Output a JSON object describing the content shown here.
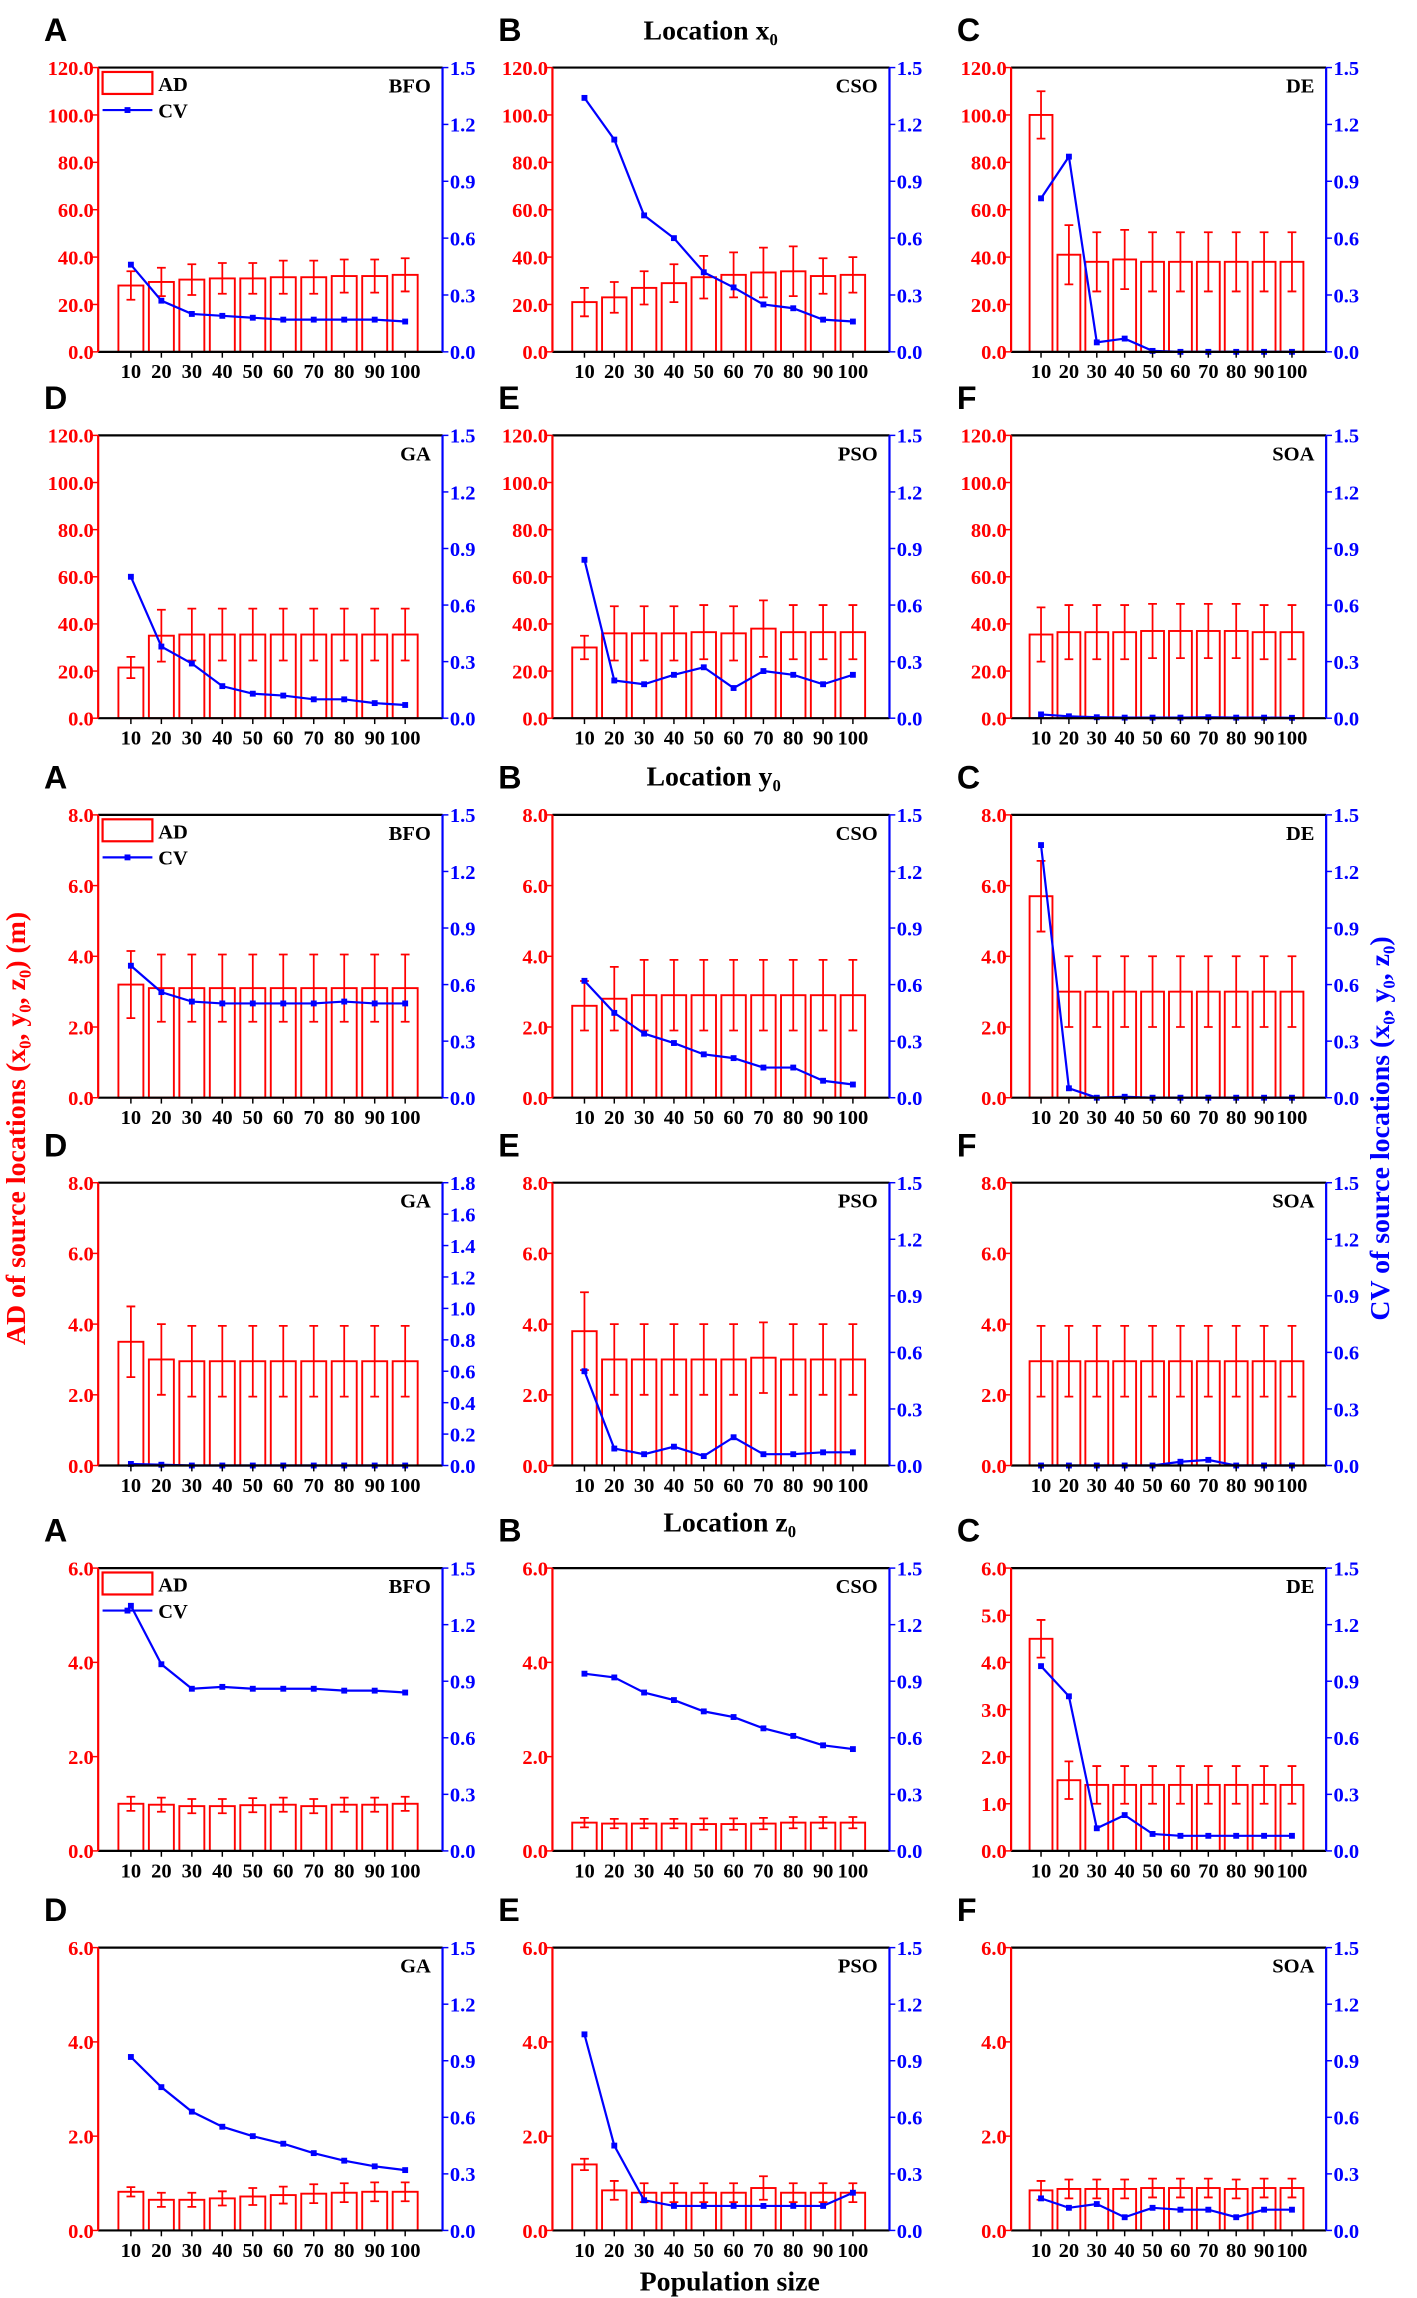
{
  "figure": {
    "x_axis_label": "Population size",
    "left_axis_label": "AD of source locations (x₀, y₀, z₀) (m)",
    "right_axis_label": "CV of source locations (x₀, y₀, z₀)",
    "group_titles": [
      "Location x₀",
      "Location y₀",
      "Location z₀"
    ],
    "legend": {
      "ad": "AD",
      "cv": "CV"
    },
    "colors": {
      "ad": "#ff0000",
      "cv": "#0000ff",
      "frame": "#000000"
    }
  },
  "chart_data": [
    {
      "type": "bar+line",
      "group": 0,
      "letter": "A",
      "algorithm": "BFO",
      "categories": [
        "10",
        "20",
        "30",
        "40",
        "50",
        "60",
        "70",
        "80",
        "90",
        "100"
      ],
      "ylim": [
        0,
        120
      ],
      "yticks": [
        0,
        20,
        40,
        60,
        80,
        100,
        120
      ],
      "y2lim": [
        0,
        1.5
      ],
      "y2ticks": [
        0,
        0.3,
        0.6,
        0.9,
        1.2,
        1.5
      ],
      "ad": [
        28,
        29.5,
        30.5,
        31,
        31,
        31.5,
        31.5,
        32,
        32,
        32.5
      ],
      "ad_err": [
        6,
        6,
        6.5,
        6.5,
        6.5,
        7,
        7,
        7,
        7,
        7
      ],
      "cv": [
        0.46,
        0.27,
        0.2,
        0.19,
        0.18,
        0.17,
        0.17,
        0.17,
        0.17,
        0.16
      ]
    },
    {
      "type": "bar+line",
      "group": 0,
      "letter": "B",
      "algorithm": "CSO",
      "categories": [
        "10",
        "20",
        "30",
        "40",
        "50",
        "60",
        "70",
        "80",
        "90",
        "100"
      ],
      "ylim": [
        0,
        120
      ],
      "yticks": [
        0,
        20,
        40,
        60,
        80,
        100,
        120
      ],
      "y2lim": [
        0,
        1.5
      ],
      "y2ticks": [
        0,
        0.3,
        0.6,
        0.9,
        1.2,
        1.5
      ],
      "ad": [
        21,
        23,
        27,
        29,
        31.5,
        32.5,
        33.5,
        34,
        32,
        32.5
      ],
      "ad_err": [
        6,
        6.5,
        7,
        8,
        9,
        9.5,
        10.5,
        10.5,
        7.5,
        7.5
      ],
      "cv": [
        1.34,
        1.12,
        0.72,
        0.6,
        0.42,
        0.34,
        0.25,
        0.23,
        0.17,
        0.16
      ]
    },
    {
      "type": "bar+line",
      "group": 0,
      "letter": "C",
      "algorithm": "DE",
      "categories": [
        "10",
        "20",
        "30",
        "40",
        "50",
        "60",
        "70",
        "80",
        "90",
        "100"
      ],
      "ylim": [
        0,
        120
      ],
      "yticks": [
        0,
        20,
        40,
        60,
        80,
        100,
        120
      ],
      "y2lim": [
        0,
        1.5
      ],
      "y2ticks": [
        0,
        0.3,
        0.6,
        0.9,
        1.2,
        1.5
      ],
      "ad": [
        100,
        41,
        38,
        39,
        38,
        38,
        38,
        38,
        38,
        38
      ],
      "ad_err": [
        10,
        12.5,
        12.5,
        12.5,
        12.5,
        12.5,
        12.5,
        12.5,
        12.5,
        12.5
      ],
      "cv": [
        0.81,
        1.03,
        0.05,
        0.07,
        0.005,
        0,
        0,
        0,
        0,
        0
      ]
    },
    {
      "type": "bar+line",
      "group": 0,
      "letter": "D",
      "algorithm": "GA",
      "categories": [
        "10",
        "20",
        "30",
        "40",
        "50",
        "60",
        "70",
        "80",
        "90",
        "100"
      ],
      "ylim": [
        0,
        120
      ],
      "yticks": [
        0,
        20,
        40,
        60,
        80,
        100,
        120
      ],
      "y2lim": [
        0,
        1.5
      ],
      "y2ticks": [
        0,
        0.3,
        0.6,
        0.9,
        1.2,
        1.5
      ],
      "ad": [
        21.5,
        35,
        35.5,
        35.5,
        35.5,
        35.5,
        35.5,
        35.5,
        35.5,
        35.5
      ],
      "ad_err": [
        4.5,
        11,
        11,
        11,
        11,
        11,
        11,
        11,
        11,
        11
      ],
      "cv": [
        0.75,
        0.38,
        0.29,
        0.17,
        0.13,
        0.12,
        0.1,
        0.1,
        0.08,
        0.07
      ]
    },
    {
      "type": "bar+line",
      "group": 0,
      "letter": "E",
      "algorithm": "PSO",
      "categories": [
        "10",
        "20",
        "30",
        "40",
        "50",
        "60",
        "70",
        "80",
        "90",
        "100"
      ],
      "ylim": [
        0,
        120
      ],
      "yticks": [
        0,
        20,
        40,
        60,
        80,
        100,
        120
      ],
      "y2lim": [
        0,
        1.5
      ],
      "y2ticks": [
        0,
        0.3,
        0.6,
        0.9,
        1.2,
        1.5
      ],
      "ad": [
        30,
        36,
        36,
        36,
        36.5,
        36,
        38,
        36.5,
        36.5,
        36.5
      ],
      "ad_err": [
        5,
        11.5,
        11.5,
        11.5,
        11.5,
        11.5,
        12,
        11.5,
        11.5,
        11.5
      ],
      "cv": [
        0.84,
        0.2,
        0.18,
        0.23,
        0.27,
        0.16,
        0.25,
        0.23,
        0.18,
        0.23
      ]
    },
    {
      "type": "bar+line",
      "group": 0,
      "letter": "F",
      "algorithm": "SOA",
      "categories": [
        "10",
        "20",
        "30",
        "40",
        "50",
        "60",
        "70",
        "80",
        "90",
        "100"
      ],
      "ylim": [
        0,
        120
      ],
      "yticks": [
        0,
        20,
        40,
        60,
        80,
        100,
        120
      ],
      "y2lim": [
        0,
        1.5
      ],
      "y2ticks": [
        0,
        0.3,
        0.6,
        0.9,
        1.2,
        1.5
      ],
      "ad": [
        35.5,
        36.5,
        36.5,
        36.5,
        37,
        37,
        37,
        37,
        36.5,
        36.5
      ],
      "ad_err": [
        11.5,
        11.5,
        11.5,
        11.5,
        11.5,
        11.5,
        11.5,
        11.5,
        11.5,
        11.5
      ],
      "cv": [
        0.02,
        0.01,
        0.005,
        0.003,
        0.003,
        0.003,
        0.005,
        0.003,
        0.003,
        0.002
      ]
    },
    {
      "type": "bar+line",
      "group": 1,
      "letter": "A",
      "algorithm": "BFO",
      "categories": [
        "10",
        "20",
        "30",
        "40",
        "50",
        "60",
        "70",
        "80",
        "90",
        "100"
      ],
      "ylim": [
        0,
        8
      ],
      "yticks": [
        0,
        2,
        4,
        6,
        8
      ],
      "y2lim": [
        0,
        1.5
      ],
      "y2ticks": [
        0,
        0.3,
        0.6,
        0.9,
        1.2,
        1.5
      ],
      "ad": [
        3.2,
        3.1,
        3.1,
        3.1,
        3.1,
        3.1,
        3.1,
        3.1,
        3.1,
        3.1
      ],
      "ad_err": [
        0.95,
        0.95,
        0.95,
        0.95,
        0.95,
        0.95,
        0.95,
        0.95,
        0.95,
        0.95
      ],
      "cv": [
        0.7,
        0.56,
        0.51,
        0.5,
        0.5,
        0.5,
        0.5,
        0.51,
        0.5,
        0.5
      ]
    },
    {
      "type": "bar+line",
      "group": 1,
      "letter": "B",
      "algorithm": "CSO",
      "categories": [
        "10",
        "20",
        "30",
        "40",
        "50",
        "60",
        "70",
        "80",
        "90",
        "100"
      ],
      "ylim": [
        0,
        8
      ],
      "yticks": [
        0,
        2,
        4,
        6,
        8
      ],
      "y2lim": [
        0,
        1.5
      ],
      "y2ticks": [
        0,
        0.3,
        0.6,
        0.9,
        1.2,
        1.5
      ],
      "ad": [
        2.6,
        2.8,
        2.9,
        2.9,
        2.9,
        2.9,
        2.9,
        2.9,
        2.9,
        2.9
      ],
      "ad_err": [
        0.7,
        0.9,
        1,
        1,
        1,
        1,
        1,
        1,
        1,
        1
      ],
      "cv": [
        0.62,
        0.45,
        0.34,
        0.29,
        0.23,
        0.21,
        0.16,
        0.16,
        0.09,
        0.07
      ]
    },
    {
      "type": "bar+line",
      "group": 1,
      "letter": "C",
      "algorithm": "DE",
      "categories": [
        "10",
        "20",
        "30",
        "40",
        "50",
        "60",
        "70",
        "80",
        "90",
        "100"
      ],
      "ylim": [
        0,
        8
      ],
      "yticks": [
        0,
        2,
        4,
        6,
        8
      ],
      "y2lim": [
        0,
        1.5
      ],
      "y2ticks": [
        0,
        0.3,
        0.6,
        0.9,
        1.2,
        1.5
      ],
      "ad": [
        5.7,
        3,
        3,
        3,
        3,
        3,
        3,
        3,
        3,
        3
      ],
      "ad_err": [
        1,
        1,
        1,
        1,
        1,
        1,
        1,
        1,
        1,
        1
      ],
      "cv": [
        1.34,
        0.05,
        0,
        0.005,
        0,
        0,
        0,
        0,
        0,
        0
      ]
    },
    {
      "type": "bar+line",
      "group": 1,
      "letter": "D",
      "algorithm": "GA",
      "categories": [
        "10",
        "20",
        "30",
        "40",
        "50",
        "60",
        "70",
        "80",
        "90",
        "100"
      ],
      "ylim": [
        0,
        8
      ],
      "yticks": [
        0,
        2,
        4,
        6,
        8
      ],
      "y2lim": [
        0,
        1.8
      ],
      "y2ticks": [
        0,
        0.2,
        0.4,
        0.6,
        0.8,
        1.0,
        1.2,
        1.4,
        1.6,
        1.8
      ],
      "ad": [
        3.5,
        3,
        2.95,
        2.95,
        2.95,
        2.95,
        2.95,
        2.95,
        2.95,
        2.95
      ],
      "ad_err": [
        1,
        1,
        1,
        1,
        1,
        1,
        1,
        1,
        1,
        1
      ],
      "cv": [
        0.01,
        0.005,
        0,
        0,
        0,
        0,
        0,
        0,
        0,
        0
      ]
    },
    {
      "type": "bar+line",
      "group": 1,
      "letter": "E",
      "algorithm": "PSO",
      "categories": [
        "10",
        "20",
        "30",
        "40",
        "50",
        "60",
        "70",
        "80",
        "90",
        "100"
      ],
      "ylim": [
        0,
        8
      ],
      "yticks": [
        0,
        2,
        4,
        6,
        8
      ],
      "y2lim": [
        0,
        1.5
      ],
      "y2ticks": [
        0,
        0.3,
        0.6,
        0.9,
        1.2,
        1.5
      ],
      "ad": [
        3.8,
        3,
        3,
        3,
        3,
        3,
        3.05,
        3,
        3,
        3
      ],
      "ad_err": [
        1.1,
        1,
        1,
        1,
        1,
        1,
        1,
        1,
        1,
        1
      ],
      "cv": [
        0.5,
        0.09,
        0.06,
        0.1,
        0.05,
        0.15,
        0.06,
        0.06,
        0.07,
        0.07
      ]
    },
    {
      "type": "bar+line",
      "group": 1,
      "letter": "F",
      "algorithm": "SOA",
      "categories": [
        "10",
        "20",
        "30",
        "40",
        "50",
        "60",
        "70",
        "80",
        "90",
        "100"
      ],
      "ylim": [
        0,
        8
      ],
      "yticks": [
        0,
        2,
        4,
        6,
        8
      ],
      "y2lim": [
        0,
        1.5
      ],
      "y2ticks": [
        0,
        0.3,
        0.6,
        0.9,
        1.2,
        1.5
      ],
      "ad": [
        2.95,
        2.95,
        2.95,
        2.95,
        2.95,
        2.95,
        2.95,
        2.95,
        2.95,
        2.95
      ],
      "ad_err": [
        1,
        1,
        1,
        1,
        1,
        1,
        1,
        1,
        1,
        1
      ],
      "cv": [
        0,
        0,
        0,
        0,
        0,
        0.02,
        0.03,
        0,
        0,
        0
      ]
    },
    {
      "type": "bar+line",
      "group": 2,
      "letter": "A",
      "algorithm": "BFO",
      "categories": [
        "10",
        "20",
        "30",
        "40",
        "50",
        "60",
        "70",
        "80",
        "90",
        "100"
      ],
      "ylim": [
        0,
        6
      ],
      "yticks": [
        0,
        2,
        4,
        6
      ],
      "y2lim": [
        0,
        1.5
      ],
      "y2ticks": [
        0,
        0.3,
        0.6,
        0.9,
        1.2,
        1.5
      ],
      "ad": [
        1.0,
        0.98,
        0.95,
        0.95,
        0.97,
        0.98,
        0.95,
        0.98,
        0.98,
        1.0
      ],
      "ad_err": [
        0.15,
        0.15,
        0.15,
        0.15,
        0.15,
        0.15,
        0.15,
        0.15,
        0.15,
        0.15
      ],
      "cv": [
        1.3,
        0.99,
        0.86,
        0.87,
        0.86,
        0.86,
        0.86,
        0.85,
        0.85,
        0.84
      ]
    },
    {
      "type": "bar+line",
      "group": 2,
      "letter": "B",
      "algorithm": "CSO",
      "categories": [
        "10",
        "20",
        "30",
        "40",
        "50",
        "60",
        "70",
        "80",
        "90",
        "100"
      ],
      "ylim": [
        0,
        6
      ],
      "yticks": [
        0,
        2,
        4,
        6
      ],
      "y2lim": [
        0,
        1.5
      ],
      "y2ticks": [
        0,
        0.3,
        0.6,
        0.9,
        1.2,
        1.5
      ],
      "ad": [
        0.6,
        0.58,
        0.58,
        0.58,
        0.57,
        0.57,
        0.58,
        0.6,
        0.6,
        0.6
      ],
      "ad_err": [
        0.1,
        0.1,
        0.1,
        0.1,
        0.12,
        0.12,
        0.12,
        0.12,
        0.12,
        0.12
      ],
      "cv": [
        0.94,
        0.92,
        0.84,
        0.8,
        0.74,
        0.71,
        0.65,
        0.61,
        0.56,
        0.54
      ]
    },
    {
      "type": "bar+line",
      "group": 2,
      "letter": "C",
      "algorithm": "DE",
      "categories": [
        "10",
        "20",
        "30",
        "40",
        "50",
        "60",
        "70",
        "80",
        "90",
        "100"
      ],
      "ylim": [
        0,
        6
      ],
      "yticks": [
        0,
        1,
        2,
        3,
        4,
        5,
        6
      ],
      "y2lim": [
        0,
        1.5
      ],
      "y2ticks": [
        0,
        0.3,
        0.6,
        0.9,
        1.2,
        1.5
      ],
      "ad": [
        4.5,
        1.5,
        1.4,
        1.4,
        1.4,
        1.4,
        1.4,
        1.4,
        1.4,
        1.4
      ],
      "ad_err": [
        0.4,
        0.4,
        0.4,
        0.4,
        0.4,
        0.4,
        0.4,
        0.4,
        0.4,
        0.4
      ],
      "cv": [
        0.98,
        0.82,
        0.12,
        0.19,
        0.09,
        0.08,
        0.08,
        0.08,
        0.08,
        0.08
      ]
    },
    {
      "type": "bar+line",
      "group": 2,
      "letter": "D",
      "algorithm": "GA",
      "categories": [
        "10",
        "20",
        "30",
        "40",
        "50",
        "60",
        "70",
        "80",
        "90",
        "100"
      ],
      "ylim": [
        0,
        6
      ],
      "yticks": [
        0,
        2,
        4,
        6
      ],
      "y2lim": [
        0,
        1.5
      ],
      "y2ticks": [
        0,
        0.3,
        0.6,
        0.9,
        1.2,
        1.5
      ],
      "ad": [
        0.82,
        0.65,
        0.65,
        0.68,
        0.72,
        0.75,
        0.78,
        0.8,
        0.82,
        0.82
      ],
      "ad_err": [
        0.1,
        0.15,
        0.15,
        0.15,
        0.18,
        0.18,
        0.2,
        0.2,
        0.2,
        0.2
      ],
      "cv": [
        0.92,
        0.76,
        0.63,
        0.55,
        0.5,
        0.46,
        0.41,
        0.37,
        0.34,
        0.32
      ]
    },
    {
      "type": "bar+line",
      "group": 2,
      "letter": "E",
      "algorithm": "PSO",
      "categories": [
        "10",
        "20",
        "30",
        "40",
        "50",
        "60",
        "70",
        "80",
        "90",
        "100"
      ],
      "ylim": [
        0,
        6
      ],
      "yticks": [
        0,
        2,
        4,
        6
      ],
      "y2lim": [
        0,
        1.5
      ],
      "y2ticks": [
        0,
        0.3,
        0.6,
        0.9,
        1.2,
        1.5
      ],
      "ad": [
        1.4,
        0.85,
        0.8,
        0.8,
        0.8,
        0.8,
        0.9,
        0.8,
        0.8,
        0.8
      ],
      "ad_err": [
        0.12,
        0.2,
        0.2,
        0.2,
        0.2,
        0.2,
        0.25,
        0.2,
        0.2,
        0.2
      ],
      "cv": [
        1.04,
        0.45,
        0.16,
        0.13,
        0.13,
        0.13,
        0.13,
        0.13,
        0.13,
        0.2
      ]
    },
    {
      "type": "bar+line",
      "group": 2,
      "letter": "F",
      "algorithm": "SOA",
      "categories": [
        "10",
        "20",
        "30",
        "40",
        "50",
        "60",
        "70",
        "80",
        "90",
        "100"
      ],
      "ylim": [
        0,
        6
      ],
      "yticks": [
        0,
        2,
        4,
        6
      ],
      "y2lim": [
        0,
        1.5
      ],
      "y2ticks": [
        0,
        0.3,
        0.6,
        0.9,
        1.2,
        1.5
      ],
      "ad": [
        0.85,
        0.88,
        0.88,
        0.88,
        0.9,
        0.9,
        0.9,
        0.88,
        0.9,
        0.9
      ],
      "ad_err": [
        0.2,
        0.2,
        0.2,
        0.2,
        0.2,
        0.2,
        0.2,
        0.2,
        0.2,
        0.2
      ],
      "cv": [
        0.17,
        0.12,
        0.14,
        0.07,
        0.12,
        0.11,
        0.11,
        0.07,
        0.11,
        0.11
      ]
    }
  ]
}
